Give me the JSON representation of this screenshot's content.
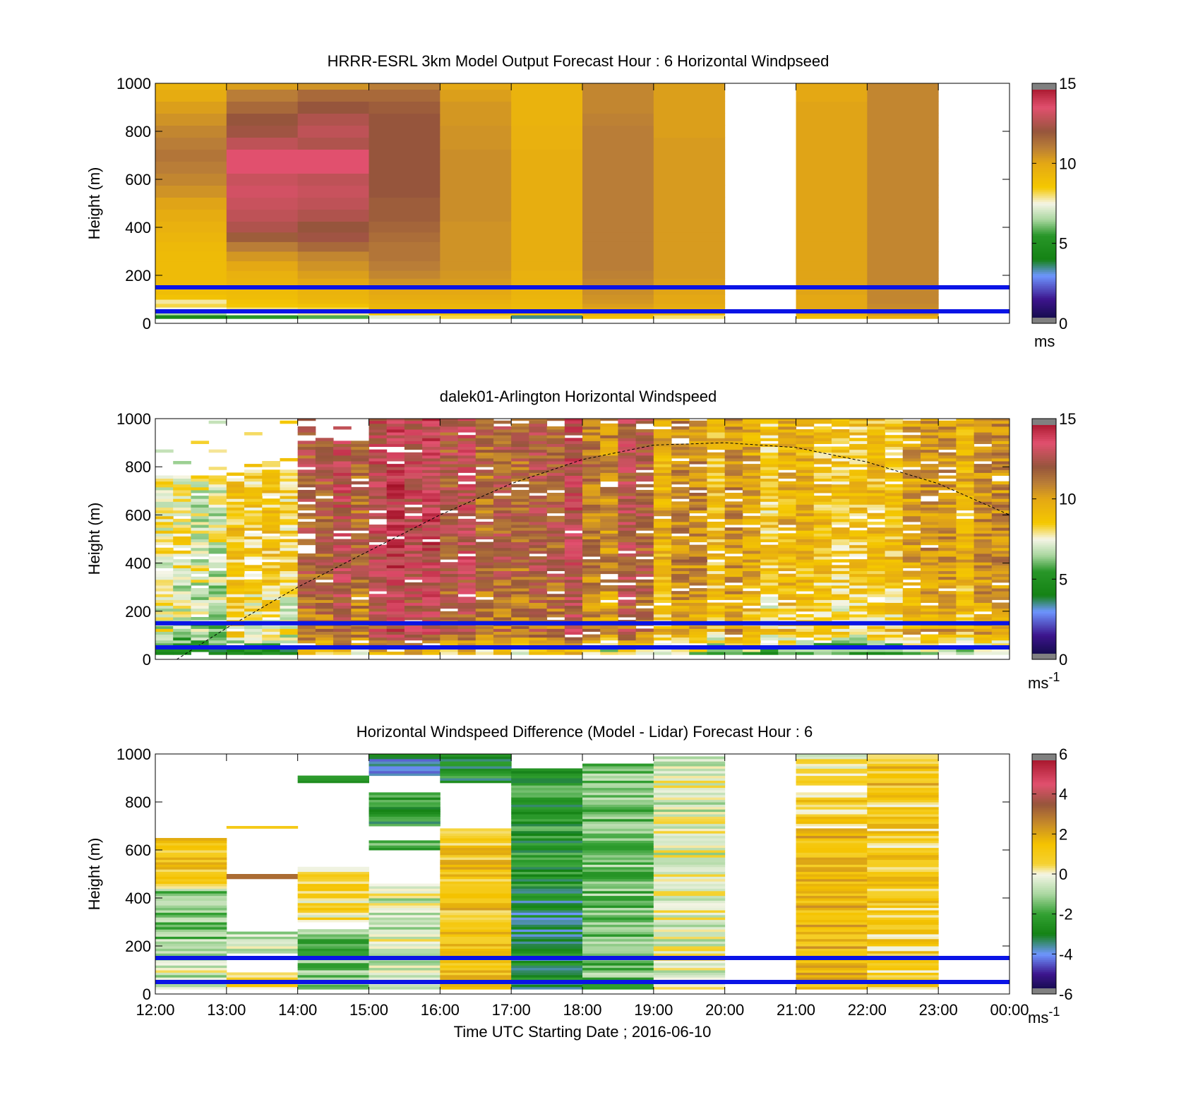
{
  "chart_data": [
    {
      "type": "heatmap",
      "title": "HRRR-ESRL 3km Model Output   Forecast Hour : 6 Horizontal Windpseed",
      "xlabel": "",
      "ylabel": "Height (m)",
      "xlim": [
        12,
        24
      ],
      "ylim": [
        0,
        1000
      ],
      "yticks": [
        "0",
        "200",
        "400",
        "600",
        "800",
        "1000"
      ],
      "colorbar": {
        "ticks": [
          "0",
          "5",
          "10",
          "15"
        ],
        "range": [
          0,
          15
        ],
        "units_label": "ms",
        "units_superscript": ""
      },
      "reference_lines_m": [
        50,
        150
      ],
      "hours": [
        12,
        13,
        14,
        15,
        16,
        17,
        18,
        19,
        20,
        21,
        22,
        23
      ],
      "levels_m": [
        25,
        45,
        60,
        75,
        90,
        110,
        130,
        150,
        175,
        200,
        240,
        280,
        320,
        360,
        400,
        450,
        500,
        550,
        600,
        650,
        700,
        750,
        800,
        850,
        900,
        950,
        1000
      ],
      "columns": [
        [
          4.5,
          6.5,
          7.5,
          8.2,
          7.8,
          8.8,
          9.0,
          9.0,
          9.1,
          9.1,
          9.1,
          9.1,
          9.2,
          9.4,
          9.6,
          9.8,
          10.1,
          10.5,
          10.8,
          11.0,
          11.2,
          11.0,
          10.8,
          10.5,
          10.2,
          9.8,
          9.5
        ],
        [
          5.5,
          7.5,
          8.0,
          8.6,
          8.8,
          9.0,
          9.1,
          9.3,
          9.5,
          9.6,
          10.0,
          10.4,
          11.0,
          11.8,
          12.5,
          12.8,
          13.0,
          13.2,
          13.0,
          13.5,
          13.5,
          12.8,
          12.2,
          12.0,
          11.5,
          11.0,
          10.2
        ],
        [
          5.8,
          7.8,
          8.2,
          8.8,
          9.2,
          9.4,
          9.5,
          9.8,
          10.0,
          10.2,
          10.5,
          10.8,
          11.5,
          12.2,
          12.0,
          12.5,
          12.8,
          13.0,
          12.8,
          13.5,
          13.5,
          12.5,
          12.8,
          12.5,
          12.0,
          11.5,
          10.5
        ],
        [
          7.2,
          8.8,
          9.2,
          9.4,
          9.6,
          9.8,
          10.0,
          10.2,
          10.5,
          10.8,
          11.0,
          11.2,
          11.2,
          11.4,
          11.6,
          11.8,
          11.8,
          12.0,
          12.0,
          12.0,
          12.0,
          12.0,
          12.0,
          12.0,
          11.8,
          11.5,
          11.0
        ],
        [
          8.2,
          9.0,
          9.2,
          9.4,
          9.6,
          9.8,
          10.0,
          10.2,
          10.3,
          10.4,
          10.5,
          10.5,
          10.5,
          10.5,
          10.5,
          10.6,
          10.6,
          10.6,
          10.6,
          10.6,
          10.6,
          10.5,
          10.5,
          10.4,
          10.4,
          10.2,
          10.0
        ],
        [
          3.5,
          8.5,
          9.0,
          9.2,
          9.3,
          9.4,
          9.5,
          9.5,
          9.6,
          9.6,
          9.7,
          9.7,
          9.7,
          9.7,
          9.7,
          9.7,
          9.7,
          9.7,
          9.7,
          9.7,
          9.7,
          9.6,
          9.6,
          9.5,
          9.5,
          9.5,
          9.5
        ],
        [
          9.0,
          9.8,
          10.0,
          10.2,
          10.4,
          10.5,
          10.6,
          10.7,
          10.8,
          10.9,
          11.0,
          11.0,
          11.0,
          11.0,
          11.0,
          11.0,
          11.0,
          11.0,
          11.0,
          11.0,
          11.0,
          11.0,
          11.0,
          10.9,
          10.8,
          10.8,
          10.8
        ],
        [
          8.0,
          9.5,
          9.6,
          9.8,
          10.0,
          10.0,
          10.1,
          10.2,
          10.2,
          10.3,
          10.3,
          10.3,
          10.3,
          10.3,
          10.3,
          10.3,
          10.3,
          10.3,
          10.3,
          10.3,
          10.3,
          10.3,
          10.2,
          10.2,
          10.2,
          10.2,
          10.2
        ],
        null,
        [
          9.0,
          9.8,
          9.9,
          10.0,
          10.0,
          10.0,
          10.1,
          10.1,
          10.1,
          10.1,
          10.1,
          10.1,
          10.1,
          10.1,
          10.1,
          10.1,
          10.1,
          10.1,
          10.1,
          10.1,
          10.1,
          10.1,
          10.1,
          10.1,
          10.1,
          10.0,
          10.0
        ],
        [
          9.8,
          10.5,
          10.6,
          10.7,
          10.8,
          10.8,
          10.8,
          10.8,
          10.8,
          10.8,
          10.8,
          10.8,
          10.8,
          10.8,
          10.8,
          10.8,
          10.8,
          10.8,
          10.8,
          10.8,
          10.8,
          10.8,
          10.8,
          10.8,
          10.8,
          10.8,
          10.8
        ],
        null
      ]
    },
    {
      "type": "heatmap",
      "title": "dalek01-Arlington  Horizontal Windspeed",
      "xlabel": "",
      "ylabel": "Height (m)",
      "xlim": [
        12,
        24
      ],
      "ylim": [
        0,
        1000
      ],
      "yticks": [
        "0",
        "200",
        "400",
        "600",
        "800",
        "1000"
      ],
      "colorbar": {
        "ticks": [
          "0",
          "5",
          "10",
          "15"
        ],
        "range": [
          0,
          15
        ],
        "units_label": "ms",
        "units_superscript": "-1"
      },
      "reference_lines_m": [
        50,
        150
      ],
      "column_step_hours": 0.25,
      "row_step_m": 12,
      "hourly_mean_speed": [
        7.5,
        8.5,
        12.5,
        13.0,
        12.0,
        12.5,
        11.5,
        10.0,
        9.5,
        9.5,
        9.8,
        10.2
      ],
      "max_valid_height_m": [
        760,
        780,
        900,
        1000,
        1000,
        1000,
        1000,
        1000,
        1000,
        1000,
        1000,
        1000
      ],
      "missing_fraction": 0.06,
      "boundary_layer_curve": {
        "x": [
          12.3,
          13,
          14,
          15,
          16,
          17,
          18,
          19,
          20,
          21,
          22,
          23,
          24
        ],
        "y": [
          0,
          130,
          300,
          450,
          600,
          730,
          830,
          890,
          900,
          880,
          820,
          730,
          600
        ]
      }
    },
    {
      "type": "heatmap",
      "title": "Horizontal Windspeed Difference (Model - Lidar) Forecast Hour : 6",
      "xlabel": "Time UTC  Starting Date ; 2016-06-10",
      "ylabel": "Height (m)",
      "xlim": [
        12,
        24
      ],
      "ylim": [
        0,
        1000
      ],
      "xticks": [
        "12:00",
        "13:00",
        "14:00",
        "15:00",
        "16:00",
        "17:00",
        "18:00",
        "19:00",
        "20:00",
        "21:00",
        "22:00",
        "23:00",
        "00:00"
      ],
      "yticks": [
        "0",
        "200",
        "400",
        "600",
        "800",
        "1000"
      ],
      "colorbar": {
        "ticks": [
          "-6",
          "-4",
          "-2",
          "0",
          "2",
          "4",
          "6"
        ],
        "range": [
          -6,
          6
        ],
        "units_label": "ms",
        "units_superscript": "-1"
      },
      "reference_lines_m": [
        50,
        150
      ],
      "hours": [
        12,
        13,
        14,
        15,
        16,
        17,
        18,
        19,
        20,
        21,
        22,
        23
      ],
      "hourly_segments": [
        [
          [
            20,
            160,
            -0.5,
            1
          ],
          [
            160,
            440,
            -1.2,
            1
          ],
          [
            440,
            650,
            1.0,
            1
          ]
        ],
        [
          [
            20,
            90,
            0.5,
            1
          ],
          [
            170,
            260,
            -0.6,
            1
          ],
          [
            480,
            500,
            2.5,
            1
          ],
          [
            690,
            700,
            1.5,
            1
          ]
        ],
        [
          [
            20,
            270,
            -1.5,
            1
          ],
          [
            300,
            530,
            0.5,
            1
          ],
          [
            880,
            910,
            -3.0,
            1
          ]
        ],
        [
          [
            20,
            460,
            -0.5,
            1
          ],
          [
            600,
            640,
            -2.0,
            1
          ],
          [
            700,
            840,
            -2.5,
            1
          ],
          [
            910,
            1000,
            -3.5,
            1
          ]
        ],
        [
          [
            20,
            690,
            1.2,
            1
          ],
          [
            880,
            1000,
            -2.6,
            1
          ]
        ],
        [
          [
            20,
            450,
            -3.0,
            1
          ],
          [
            450,
            940,
            -2.4,
            1
          ]
        ],
        [
          [
            20,
            960,
            -1.5,
            1
          ]
        ],
        [
          [
            20,
            990,
            -0.3,
            1
          ]
        ],
        null,
        [
          [
            20,
            690,
            1.5,
            1
          ],
          [
            700,
            840,
            0.8,
            1
          ],
          [
            870,
            1000,
            0.3,
            1
          ]
        ],
        [
          [
            20,
            860,
            0.9,
            1
          ],
          [
            860,
            1000,
            1.3,
            1
          ]
        ],
        null
      ]
    }
  ]
}
